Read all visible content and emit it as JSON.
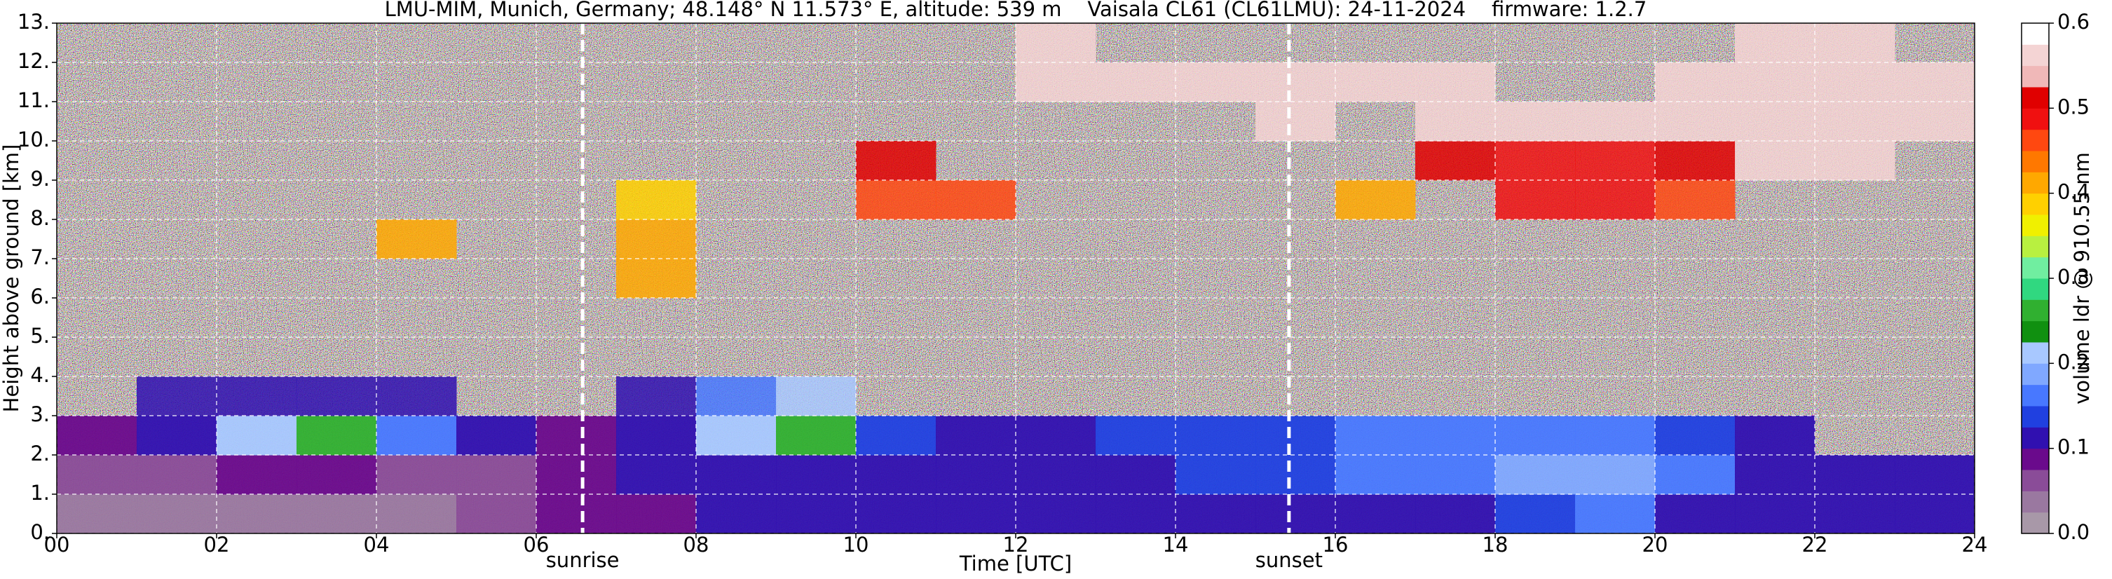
{
  "chart_data": {
    "type": "heatmap",
    "title": "LMU-MIM, Munich, Germany; 48.148° N 11.573° E, altitude: 539 m    Vaisala CL61 (CL61LMU): 24-11-2024    firmware: 1.2.7",
    "xlabel": "Time [UTC]",
    "ylabel": "Height above ground [km]",
    "colorbar_label": "volume ldr @ 910.55 nm",
    "xlim": [
      0,
      24
    ],
    "xticks": [
      {
        "value": 0,
        "label": "00"
      },
      {
        "value": 2,
        "label": "02"
      },
      {
        "value": 4,
        "label": "04"
      },
      {
        "value": 6,
        "label": "06"
      },
      {
        "value": 8,
        "label": "08"
      },
      10,
      12,
      14,
      16,
      18,
      20,
      22,
      24
    ],
    "ylim": [
      0,
      13
    ],
    "yticks": [
      {
        "value": 0,
        "label": "0."
      },
      {
        "value": 1,
        "label": "1."
      },
      {
        "value": 2,
        "label": "2."
      },
      {
        "value": 3,
        "label": "3."
      },
      {
        "value": 4,
        "label": "4."
      },
      {
        "value": 5,
        "label": "5."
      },
      {
        "value": 6,
        "label": "6."
      },
      {
        "value": 7,
        "label": "7."
      },
      {
        "value": 8,
        "label": "8."
      },
      {
        "value": 9,
        "label": "9."
      },
      {
        "value": 10,
        "label": "10."
      },
      {
        "value": 11,
        "label": "11."
      },
      {
        "value": 12,
        "label": "12."
      },
      {
        "value": 13,
        "label": "13."
      }
    ],
    "grid": true,
    "clim": [
      0,
      0.6
    ],
    "cticks": [
      {
        "value": 0,
        "label": "0.0"
      },
      0.1,
      0.2,
      0.3,
      0.4,
      0.5,
      0.6
    ],
    "colors": [
      "#a898a8",
      "#9a78a0",
      "#8a4c98",
      "#6a0a8c",
      "#3010b0",
      "#2040e0",
      "#4878ff",
      "#80a8ff",
      "#a8c8ff",
      "#109010",
      "#30b030",
      "#30d880",
      "#70eea0",
      "#b8f040",
      "#f0f000",
      "#ffd000",
      "#ffa800",
      "#ff7800",
      "#ff4810",
      "#f01010",
      "#e00000",
      "#f0b8b8",
      "#f4d4d4",
      "#ffffff"
    ],
    "x_bins": [
      0,
      1,
      2,
      3,
      4,
      5,
      6,
      7,
      8,
      9,
      10,
      11,
      12,
      13,
      14,
      15,
      16,
      17,
      18,
      19,
      20,
      21,
      22,
      23,
      24
    ],
    "y_bins": [
      0,
      1,
      2,
      3,
      4,
      5,
      6,
      7,
      8,
      9,
      10,
      11,
      12,
      13
    ],
    "z": [
      [
        0.03,
        0.03,
        0.03,
        0.03,
        0.04,
        0.06,
        0.08,
        0.08,
        0.1,
        0.1,
        0.1,
        0.1,
        0.1,
        0.1,
        0.1,
        0.1,
        0.1,
        0.12,
        0.14,
        0.15,
        0.12,
        0.1,
        0.1,
        0.1
      ],
      [
        0.06,
        0.07,
        0.08,
        0.08,
        0.07,
        0.07,
        0.08,
        0.1,
        0.11,
        0.11,
        0.11,
        0.12,
        0.12,
        0.12,
        0.13,
        0.14,
        0.15,
        0.17,
        0.19,
        0.19,
        0.15,
        0.12,
        0.11,
        0.1
      ],
      [
        0.08,
        0.1,
        0.2,
        0.25,
        0.15,
        0.1,
        0.08,
        0.12,
        0.2,
        0.25,
        0.13,
        0.12,
        0.12,
        0.13,
        0.14,
        0.14,
        0.15,
        0.16,
        0.16,
        0.15,
        0.13,
        0.12,
        null,
        null
      ],
      [
        null,
        0.1,
        0.12,
        0.12,
        0.12,
        null,
        null,
        0.1,
        0.15,
        0.2,
        null,
        null,
        null,
        null,
        null,
        null,
        null,
        null,
        null,
        null,
        null,
        null,
        null,
        null
      ],
      [
        null,
        null,
        null,
        null,
        null,
        null,
        null,
        null,
        null,
        null,
        null,
        null,
        null,
        null,
        null,
        null,
        null,
        null,
        null,
        null,
        null,
        null,
        null,
        null
      ],
      [
        null,
        null,
        null,
        null,
        null,
        null,
        null,
        null,
        null,
        null,
        null,
        null,
        null,
        null,
        null,
        null,
        null,
        null,
        null,
        null,
        null,
        null,
        null,
        null
      ],
      [
        null,
        null,
        null,
        null,
        null,
        null,
        null,
        0.4,
        null,
        null,
        null,
        null,
        null,
        null,
        null,
        null,
        null,
        null,
        null,
        null,
        null,
        null,
        null,
        null
      ],
      [
        null,
        null,
        null,
        null,
        0.42,
        null,
        null,
        0.4,
        null,
        null,
        null,
        null,
        null,
        null,
        null,
        null,
        null,
        null,
        null,
        null,
        null,
        null,
        null,
        null
      ],
      [
        null,
        null,
        null,
        null,
        null,
        null,
        null,
        0.38,
        null,
        null,
        0.45,
        0.45,
        null,
        null,
        null,
        null,
        0.42,
        null,
        0.48,
        0.48,
        0.47,
        null,
        null,
        null
      ],
      [
        null,
        null,
        null,
        null,
        null,
        null,
        null,
        null,
        null,
        null,
        0.5,
        null,
        null,
        null,
        null,
        null,
        null,
        0.5,
        0.48,
        0.48,
        0.5,
        0.55,
        0.55,
        null
      ],
      [
        null,
        null,
        null,
        null,
        null,
        null,
        null,
        null,
        null,
        null,
        null,
        null,
        null,
        null,
        null,
        0.55,
        null,
        0.55,
        0.55,
        0.55,
        0.55,
        0.55,
        0.55,
        0.55
      ],
      [
        null,
        null,
        null,
        null,
        null,
        null,
        null,
        null,
        null,
        null,
        null,
        null,
        0.55,
        0.55,
        0.55,
        0.55,
        0.55,
        0.55,
        null,
        null,
        0.55,
        0.55,
        0.55,
        0.55
      ],
      [
        null,
        null,
        null,
        null,
        null,
        null,
        null,
        null,
        null,
        null,
        null,
        null,
        0.55,
        null,
        null,
        null,
        null,
        null,
        null,
        null,
        null,
        0.55,
        0.55,
        null
      ]
    ],
    "annotations": [
      {
        "text": "sunrise",
        "x": 6.58
      },
      {
        "text": "sunset",
        "x": 15.42
      }
    ]
  }
}
